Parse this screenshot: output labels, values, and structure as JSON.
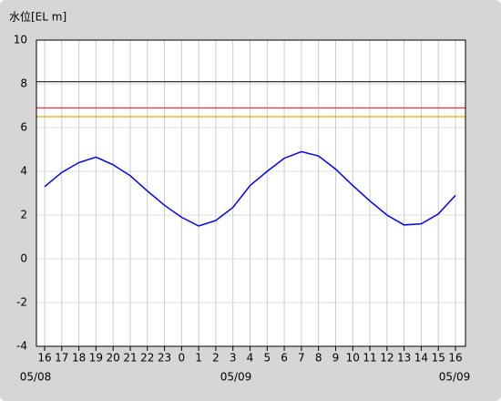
{
  "chart_data": {
    "type": "line",
    "y_label": "水位[EL m]",
    "categories": [
      "16",
      "17",
      "18",
      "19",
      "20",
      "21",
      "22",
      "23",
      "0",
      "1",
      "2",
      "3",
      "4",
      "5",
      "6",
      "7",
      "8",
      "9",
      "10",
      "11",
      "12",
      "13",
      "14",
      "15",
      "16"
    ],
    "date_labels": [
      "05/08",
      "05/09",
      "05/09"
    ],
    "series": [
      {
        "color": "#0000ff",
        "values": [
          3.3,
          3.95,
          4.4,
          4.65,
          4.3,
          3.8,
          3.1,
          2.45,
          1.9,
          1.5,
          1.75,
          2.35,
          3.35,
          4.0,
          4.6,
          4.9,
          4.7,
          4.1,
          3.35,
          2.65,
          2.0,
          1.55,
          1.6,
          2.05,
          2.9
        ]
      }
    ],
    "reference_lines": [
      {
        "value": 8.1,
        "color": "#333333"
      },
      {
        "value": 6.9,
        "color": "#ff3333"
      },
      {
        "value": 6.5,
        "color": "#ffa500"
      }
    ],
    "ylim": [
      -4,
      10
    ],
    "yticks": [
      -4,
      -2,
      0,
      2,
      4,
      6,
      8,
      10
    ],
    "grid": true
  }
}
